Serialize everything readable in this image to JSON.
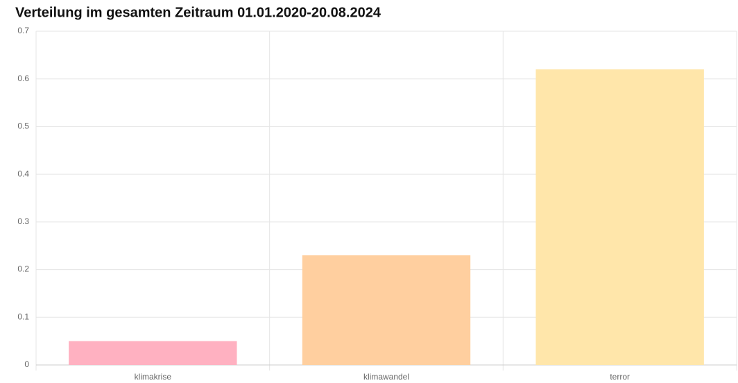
{
  "chart_data": {
    "type": "bar",
    "title": "Verteilung im gesamten Zeitraum 01.01.2020-20.08.2024",
    "categories": [
      "klimakrise",
      "klimawandel",
      "terror"
    ],
    "values": [
      0.05,
      0.23,
      0.62
    ],
    "colors": [
      "#ffb1c1",
      "#ffcf9f",
      "#ffe6aa"
    ],
    "ylim": [
      0,
      0.7
    ],
    "yticks": [
      0,
      0.1,
      0.2,
      0.3,
      0.4,
      0.5,
      0.6,
      0.7
    ],
    "grid": true
  }
}
